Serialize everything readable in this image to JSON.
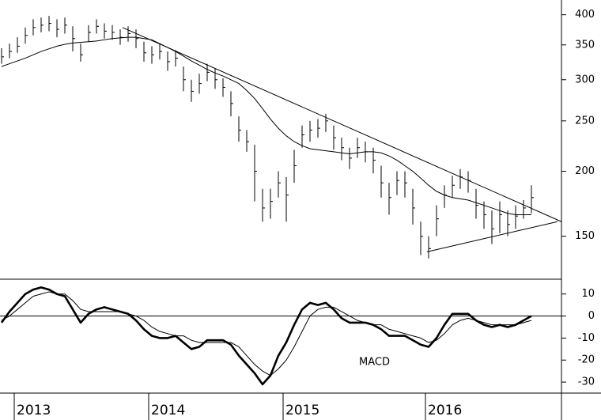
{
  "chart_data": [
    {
      "type": "ohlc",
      "log_scale": true,
      "ylim": [
        124,
        427
      ],
      "yticks": [
        150,
        200,
        250,
        300,
        350,
        400
      ],
      "color": "#000000",
      "high": [
        345,
        352,
        362,
        378,
        392,
        395,
        398,
        392,
        395,
        380,
        352,
        382,
        392,
        385,
        382,
        375,
        380,
        375,
        355,
        348,
        352,
        340,
        342,
        318,
        300,
        308,
        322,
        315,
        302,
        285,
        255,
        240,
        225,
        185,
        185,
        200,
        195,
        220,
        245,
        250,
        252,
        258,
        245,
        232,
        222,
        232,
        228,
        222,
        205,
        190,
        200,
        200,
        185,
        160,
        150,
        172,
        188,
        196,
        202,
        200,
        185,
        175,
        168,
        175,
        168,
        172,
        176,
        188
      ],
      "low": [
        322,
        330,
        338,
        352,
        365,
        370,
        372,
        362,
        368,
        340,
        325,
        355,
        368,
        360,
        358,
        350,
        355,
        345,
        325,
        322,
        328,
        312,
        318,
        285,
        272,
        282,
        298,
        288,
        278,
        255,
        228,
        218,
        175,
        160,
        162,
        178,
        160,
        190,
        222,
        228,
        232,
        238,
        220,
        210,
        202,
        212,
        208,
        198,
        178,
        165,
        180,
        178,
        158,
        138,
        136,
        150,
        170,
        178,
        185,
        182,
        162,
        155,
        145,
        152,
        150,
        155,
        162,
        166
      ],
      "close": [
        332,
        340,
        348,
        365,
        378,
        382,
        385,
        375,
        382,
        360,
        335,
        370,
        380,
        372,
        370,
        362,
        368,
        360,
        338,
        335,
        340,
        325,
        330,
        300,
        285,
        295,
        310,
        300,
        290,
        270,
        240,
        228,
        200,
        170,
        175,
        190,
        180,
        205,
        235,
        240,
        242,
        250,
        232,
        222,
        212,
        222,
        218,
        210,
        190,
        178,
        192,
        190,
        170,
        150,
        142,
        162,
        180,
        188,
        195,
        192,
        172,
        165,
        155,
        165,
        158,
        164,
        170,
        178
      ],
      "moving_average": {
        "color": "#000000",
        "values": [
          318,
          322,
          326,
          330,
          335,
          340,
          344,
          348,
          351,
          353,
          354,
          355,
          356,
          358,
          360,
          361,
          362,
          362,
          360,
          358,
          352,
          346,
          340,
          333,
          326,
          320,
          314,
          309,
          305,
          300,
          295,
          286,
          276,
          264,
          252,
          242,
          234,
          228,
          224,
          221,
          220,
          219,
          218,
          217,
          216,
          217,
          218,
          218,
          217,
          214,
          210,
          205,
          200,
          194,
          188,
          183,
          180,
          178,
          177,
          176,
          174,
          172,
          170,
          168,
          166,
          165,
          165,
          165
        ]
      },
      "trendlines": [
        {
          "x": [
            15.3,
            70.8
          ],
          "y": [
            378,
            160
          ]
        },
        {
          "x": [
            53.8,
            70.3
          ],
          "y": [
            140,
            160
          ]
        }
      ]
    },
    {
      "type": "line",
      "ylim": [
        -35,
        16
      ],
      "yticks": [
        -30,
        -20,
        -10,
        0,
        10
      ],
      "zero_line": true,
      "categories": [
        null,
        null,
        "2013",
        null,
        null,
        null,
        null,
        null,
        null,
        null,
        null,
        null,
        null,
        null,
        null,
        null,
        null,
        null,
        null,
        "2014",
        null,
        null,
        null,
        null,
        null,
        null,
        null,
        null,
        null,
        null,
        null,
        null,
        null,
        null,
        null,
        null,
        "2015",
        null,
        null,
        null,
        null,
        null,
        null,
        null,
        null,
        null,
        null,
        null,
        null,
        null,
        null,
        null,
        null,
        null,
        "2016",
        null,
        null,
        null,
        null,
        null,
        null,
        null,
        null,
        null,
        null,
        null,
        null,
        null
      ],
      "series": [
        {
          "name": "MACD",
          "color": "#000000",
          "values": [
            -3,
            2,
            6,
            10,
            12,
            13,
            12,
            10,
            9,
            3,
            -3,
            1,
            3,
            4,
            3,
            2,
            1,
            -2,
            -6,
            -9,
            -10,
            -10,
            -9,
            -12,
            -15,
            -14,
            -11,
            -11,
            -11,
            -13,
            -18,
            -22,
            -26,
            -31,
            -27,
            -18,
            -12,
            -4,
            3,
            6,
            5,
            6,
            3,
            -1,
            -3,
            -3,
            -3,
            -4,
            -6,
            -9,
            -9,
            -9,
            -11,
            -13,
            -14,
            -10,
            -4,
            1,
            1,
            1,
            -2,
            -4,
            -5,
            -4,
            -5,
            -4,
            -2,
            0
          ]
        },
        {
          "color": "#000000",
          "values": [
            -2,
            0,
            3,
            6,
            9,
            10,
            11,
            10,
            10,
            7,
            3,
            2,
            2,
            2,
            2,
            2,
            1,
            0,
            -2,
            -5,
            -7,
            -8,
            -9,
            -9,
            -11,
            -12,
            -12,
            -12,
            -12,
            -12,
            -14,
            -18,
            -22,
            -25,
            -27,
            -24,
            -20,
            -14,
            -7,
            0,
            3,
            4,
            4,
            2,
            0,
            -2,
            -3,
            -4,
            -4,
            -6,
            -7,
            -8,
            -9,
            -10,
            -12,
            -11,
            -8,
            -4,
            -2,
            -1,
            -2,
            -3,
            -4,
            -4,
            -4,
            -4,
            -3,
            -2
          ]
        }
      ]
    }
  ]
}
